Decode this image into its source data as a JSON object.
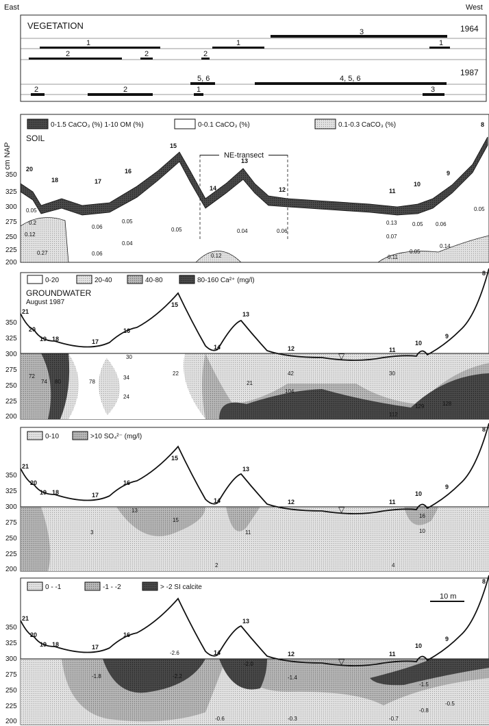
{
  "header": {
    "east": "East",
    "west": "West"
  },
  "vegetation": {
    "title": "VEGETATION",
    "year_1964": "1964",
    "year_1987": "1987",
    "labels_1964": [
      "3",
      "1",
      "1",
      "1",
      "2",
      "2",
      "2"
    ],
    "labels_1987": [
      "5, 6",
      "4, 5, 6",
      "2",
      "2",
      "1",
      "3"
    ]
  },
  "soil": {
    "axis_label": "cm NAP",
    "title": "SOIL",
    "legend": [
      "0-1.5 CaCO₃ (%) 1-10 OM (%)",
      "0-0.1 CaCO₃ (%)",
      "0.1-0.3 CaCO₃ (%)"
    ],
    "transect": "NE-transect",
    "y_ticks": [
      "350",
      "325",
      "300",
      "275",
      "250",
      "225",
      "200"
    ],
    "stations": [
      "20",
      "18",
      "17",
      "16",
      "15",
      "14",
      "13",
      "12",
      "11",
      "10",
      "9",
      "8"
    ],
    "pocket_values": [
      "0.2",
      "0.12",
      "0.27",
      "0.12",
      "0.11",
      "0.14",
      "0.05"
    ],
    "column_values": [
      "0.05",
      "0.06",
      "0.05",
      "0.04",
      "0.06",
      "0.05",
      "0.04",
      "0.06",
      "0.13",
      "0.07",
      "0.05",
      "0.06",
      "0.05"
    ]
  },
  "groundwater": {
    "title": "GROUNDWATER",
    "subtitle": "August 1987",
    "legend": [
      "0-20",
      "20-40",
      "40-80",
      "80-160 Ca²⁺ (mg/l)"
    ],
    "y_ticks": [
      "350",
      "325",
      "300",
      "275",
      "250",
      "225",
      "200"
    ],
    "stations": [
      "21",
      "20",
      "19",
      "18",
      "17",
      "16",
      "15",
      "14",
      "13",
      "12",
      "11",
      "10",
      "9",
      "8"
    ],
    "values": [
      "30",
      "34",
      "24",
      "22",
      "21",
      "30",
      "78",
      "72",
      "74",
      "80",
      "42",
      "104",
      "112",
      "129",
      "128"
    ]
  },
  "sulphate": {
    "legend": [
      "0-10",
      ">10 SO₄²⁻ (mg/l)"
    ],
    "y_ticks": [
      "350",
      "325",
      "300",
      "275",
      "250",
      "225",
      "200"
    ],
    "stations": [
      "21",
      "20",
      "19",
      "18",
      "17",
      "16",
      "15",
      "14",
      "13",
      "12",
      "11",
      "10",
      "9",
      "8"
    ],
    "values": [
      "13",
      "15",
      "11",
      "16",
      "10",
      "2",
      "3",
      "4"
    ]
  },
  "calcite": {
    "legend": [
      "0 - -1",
      "-1 - -2",
      "> -2 SI calcite"
    ],
    "scale_bar": "10 m",
    "y_ticks": [
      "350",
      "325",
      "300",
      "275",
      "250",
      "225",
      "200"
    ],
    "stations": [
      "21",
      "20",
      "19",
      "18",
      "17",
      "16",
      "14",
      "13",
      "12",
      "11",
      "10",
      "9",
      "8"
    ],
    "values": [
      "-2.6",
      "-2.0",
      "-2.2",
      "-1.8",
      "-1.4",
      "-0.6",
      "-0.3",
      "-0.7",
      "-1.5",
      "-0.8",
      "-0.5"
    ]
  }
}
